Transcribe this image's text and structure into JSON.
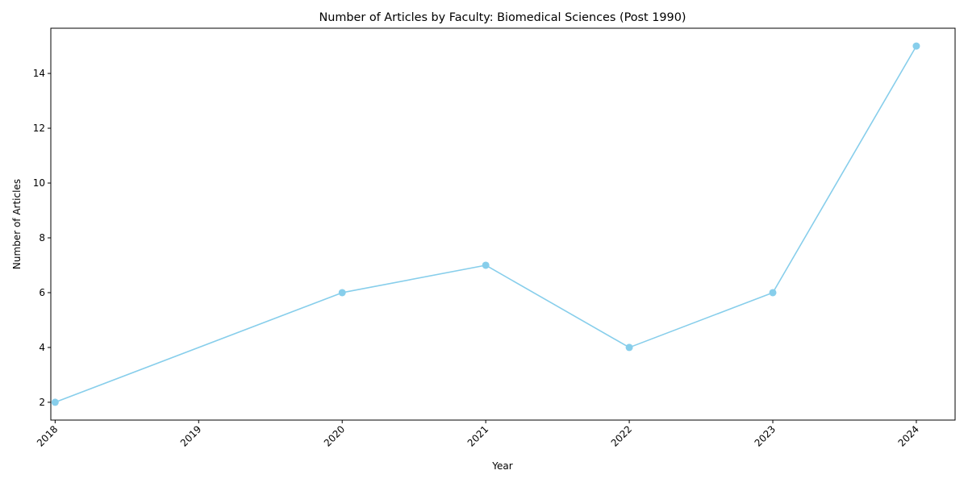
{
  "chart_data": {
    "type": "line",
    "title": "Number of Articles by Faculty: Biomedical Sciences (Post 1990)",
    "xlabel": "Year",
    "ylabel": "Number of Articles",
    "x": [
      2018,
      2020,
      2021,
      2022,
      2023,
      2024
    ],
    "y": [
      2,
      6,
      7,
      4,
      6,
      15
    ],
    "x_ticks": [
      "2018",
      "2019",
      "2020",
      "2021",
      "2022",
      "2023",
      "2024"
    ],
    "y_ticks": [
      "2",
      "4",
      "6",
      "8",
      "10",
      "12",
      "14"
    ],
    "xlim": [
      2017.97,
      2024.27
    ],
    "ylim": [
      1.35,
      15.65
    ],
    "x_tick_rotation": "45 degrees",
    "grid": false,
    "legend": "none",
    "line_color": "#87CEEB",
    "marker": "circle"
  }
}
